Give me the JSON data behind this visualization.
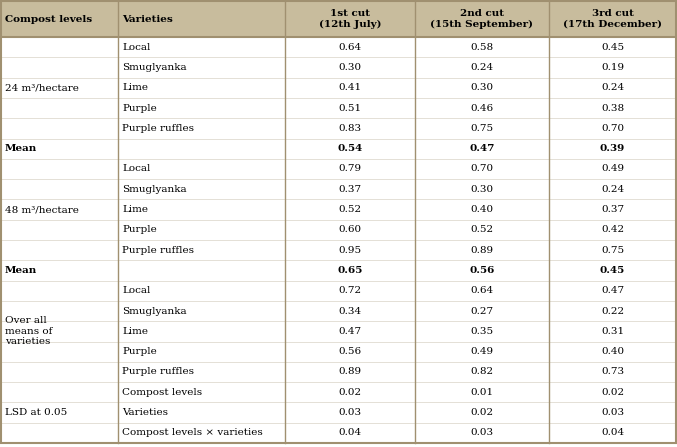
{
  "header_bg": "#c8bc9d",
  "body_bg": "#ffffff",
  "border_color": "#a09070",
  "col_headers": [
    "Compost levels",
    "Varieties",
    "1st cut\n(12th July)",
    "2nd cut\n(15th September)",
    "3rd cut\n(17th December)"
  ],
  "rows": [
    {
      "compost": "",
      "variety": "Local",
      "c1": "0.64",
      "c2": "0.58",
      "c3": "0.45",
      "is_mean": false
    },
    {
      "compost": "",
      "variety": "Smuglyanka",
      "c1": "0.30",
      "c2": "0.24",
      "c3": "0.19",
      "is_mean": false
    },
    {
      "compost": "24 m³/hectare",
      "variety": "Lime",
      "c1": "0.41",
      "c2": "0.30",
      "c3": "0.24",
      "is_mean": false
    },
    {
      "compost": "",
      "variety": "Purple",
      "c1": "0.51",
      "c2": "0.46",
      "c3": "0.38",
      "is_mean": false
    },
    {
      "compost": "",
      "variety": "Purple ruffles",
      "c1": "0.83",
      "c2": "0.75",
      "c3": "0.70",
      "is_mean": false
    },
    {
      "compost": "Mean",
      "variety": "",
      "c1": "0.54",
      "c2": "0.47",
      "c3": "0.39",
      "is_mean": true
    },
    {
      "compost": "",
      "variety": "Local",
      "c1": "0.79",
      "c2": "0.70",
      "c3": "0.49",
      "is_mean": false
    },
    {
      "compost": "",
      "variety": "Smuglyanka",
      "c1": "0.37",
      "c2": "0.30",
      "c3": "0.24",
      "is_mean": false
    },
    {
      "compost": "48 m³/hectare",
      "variety": "Lime",
      "c1": "0.52",
      "c2": "0.40",
      "c3": "0.37",
      "is_mean": false
    },
    {
      "compost": "",
      "variety": "Purple",
      "c1": "0.60",
      "c2": "0.52",
      "c3": "0.42",
      "is_mean": false
    },
    {
      "compost": "",
      "variety": "Purple ruffles",
      "c1": "0.95",
      "c2": "0.89",
      "c3": "0.75",
      "is_mean": false
    },
    {
      "compost": "Mean",
      "variety": "",
      "c1": "0.65",
      "c2": "0.56",
      "c3": "0.45",
      "is_mean": true
    },
    {
      "compost": "",
      "variety": "Local",
      "c1": "0.72",
      "c2": "0.64",
      "c3": "0.47",
      "is_mean": false
    },
    {
      "compost": "Over all\nmeans of\nvarieties",
      "variety": "Smuglyanka",
      "c1": "0.34",
      "c2": "0.27",
      "c3": "0.22",
      "is_mean": false
    },
    {
      "compost": "",
      "variety": "Lime",
      "c1": "0.47",
      "c2": "0.35",
      "c3": "0.31",
      "is_mean": false
    },
    {
      "compost": "",
      "variety": "Purple",
      "c1": "0.56",
      "c2": "0.49",
      "c3": "0.40",
      "is_mean": false
    },
    {
      "compost": "",
      "variety": "Purple ruffles",
      "c1": "0.89",
      "c2": "0.82",
      "c3": "0.73",
      "is_mean": false
    },
    {
      "compost": "",
      "variety": "Compost levels",
      "c1": "0.02",
      "c2": "0.01",
      "c3": "0.02",
      "is_mean": false
    },
    {
      "compost": "LSD at 0.05",
      "variety": "Varieties",
      "c1": "0.03",
      "c2": "0.02",
      "c3": "0.03",
      "is_mean": false
    },
    {
      "compost": "",
      "variety": "Compost levels × varieties",
      "c1": "0.04",
      "c2": "0.03",
      "c3": "0.04",
      "is_mean": false
    }
  ],
  "compost_spans": [
    {
      "label": "24 m³/hectare",
      "start": 0,
      "end": 4
    },
    {
      "label": "Mean",
      "start": 5,
      "end": 5
    },
    {
      "label": "48 m³/hectare",
      "start": 6,
      "end": 10
    },
    {
      "label": "Mean",
      "start": 11,
      "end": 11
    },
    {
      "label": "Over all\nmeans of\nvarieties",
      "start": 12,
      "end": 16
    },
    {
      "label": "LSD at 0.05",
      "start": 17,
      "end": 19
    }
  ],
  "figsize": [
    6.77,
    4.47
  ],
  "dpi": 100
}
